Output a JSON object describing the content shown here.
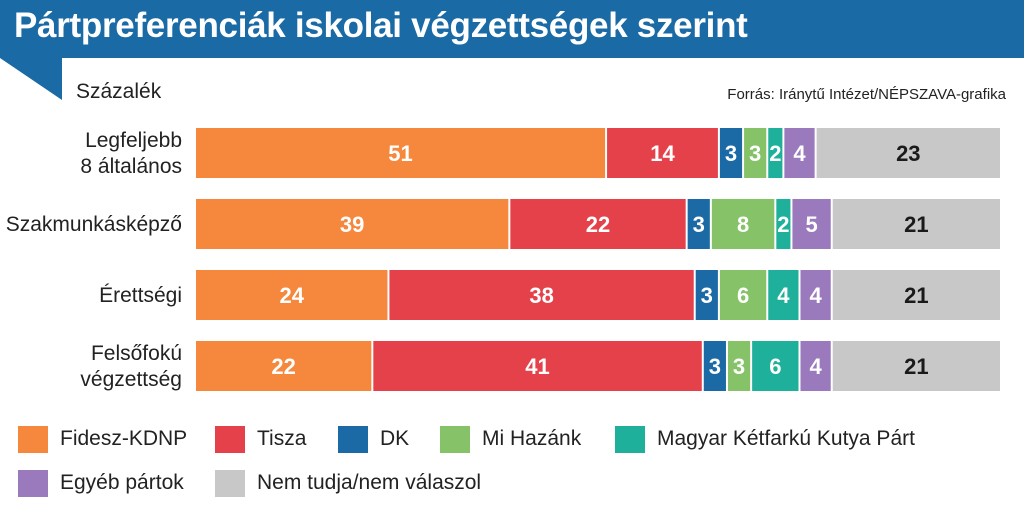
{
  "header": {
    "title": "Pártpreferenciák iskolai végzettségek szerint",
    "unit": "Százalék",
    "source": "Forrás: Iránytű Intézet/NÉPSZAVA-grafika"
  },
  "colors": {
    "title_bar": "#1a6aa5",
    "fidesz": "#f5883c",
    "tisza": "#e5414a",
    "dk": "#1b6aa6",
    "mi_hazank": "#86c267",
    "mkkp": "#1eb09a",
    "egyeb": "#9a79bd",
    "nem_tudja": "#c8c8c8"
  },
  "chart_data": {
    "type": "bar",
    "orientation": "horizontal",
    "stacked": true,
    "categories": [
      [
        "Legfeljebb",
        "8 általános"
      ],
      [
        "Szakmunkásképző"
      ],
      [
        "Érettségi"
      ],
      [
        "Felsőfokú",
        "végzettség"
      ]
    ],
    "series": [
      {
        "name": "Fidesz-KDNP",
        "color": "#f5883c",
        "values": [
          51,
          39,
          24,
          22
        ]
      },
      {
        "name": "Tisza",
        "color": "#e5414a",
        "values": [
          14,
          22,
          38,
          41
        ]
      },
      {
        "name": "DK",
        "color": "#1b6aa6",
        "values": [
          3,
          3,
          3,
          3
        ]
      },
      {
        "name": "Mi Hazánk",
        "color": "#86c267",
        "values": [
          3,
          8,
          6,
          3
        ]
      },
      {
        "name": "Magyar Kétfarkú Kutya Párt",
        "color": "#1eb09a",
        "values": [
          2,
          2,
          4,
          6
        ]
      },
      {
        "name": "Egyéb pártok",
        "color": "#9a79bd",
        "values": [
          4,
          5,
          4,
          4
        ]
      },
      {
        "name": "Nem tudja/nem válaszol",
        "color": "#c8c8c8",
        "values": [
          23,
          21,
          21,
          21
        ]
      }
    ],
    "xlim": [
      0,
      100
    ],
    "xlabel": "",
    "ylabel": "",
    "grid": false,
    "legend_position": "bottom"
  },
  "legend": {
    "items": [
      {
        "label": "Fidesz-KDNP",
        "color": "#f5883c"
      },
      {
        "label": "Tisza",
        "color": "#e5414a"
      },
      {
        "label": "DK",
        "color": "#1b6aa6"
      },
      {
        "label": "Mi Hazánk",
        "color": "#86c267"
      },
      {
        "label": "Magyar Kétfarkú Kutya Párt",
        "color": "#1eb09a"
      },
      {
        "label": "Egyéb pártok",
        "color": "#9a79bd"
      },
      {
        "label": "Nem tudja/nem válaszol",
        "color": "#c8c8c8"
      }
    ]
  }
}
